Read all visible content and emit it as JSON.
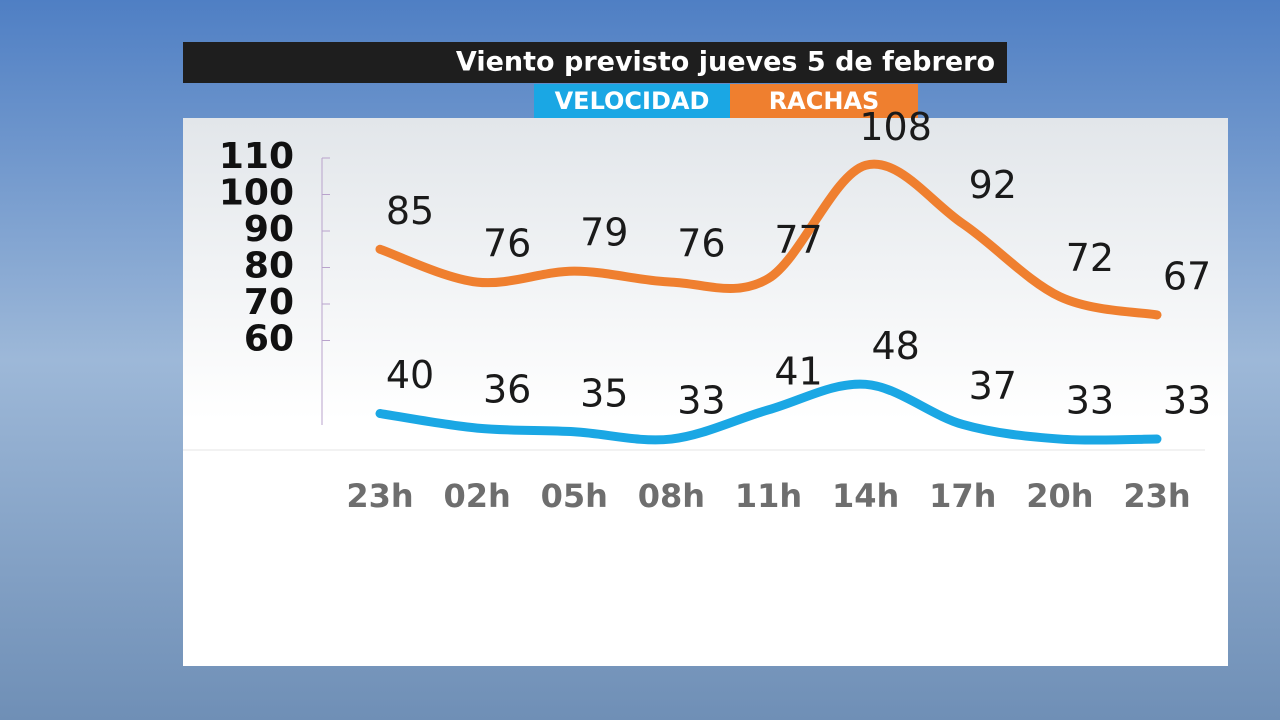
{
  "chart_data": {
    "type": "line",
    "title": "Viento previsto jueves 5 de febrero",
    "categories": [
      "23h",
      "02h",
      "05h",
      "08h",
      "11h",
      "14h",
      "17h",
      "20h",
      "23h"
    ],
    "series": [
      {
        "name": "VELOCIDAD",
        "color": "#1aa7e4",
        "values": [
          40,
          36,
          35,
          33,
          41,
          48,
          37,
          33,
          33
        ]
      },
      {
        "name": "RACHAS",
        "color": "#ef7f2f",
        "values": [
          85,
          76,
          79,
          76,
          77,
          108,
          92,
          72,
          67
        ]
      }
    ],
    "ylim": [
      30,
      110
    ],
    "yticks": [
      60,
      70,
      80,
      90,
      100,
      110
    ]
  }
}
